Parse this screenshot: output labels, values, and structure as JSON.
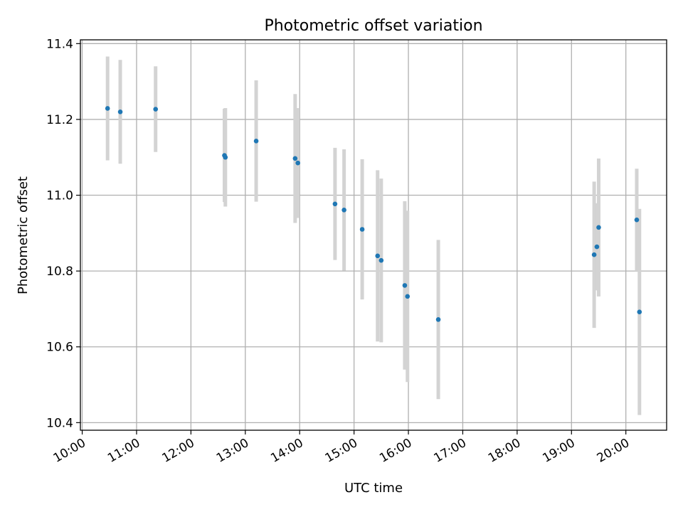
{
  "chart_data": {
    "type": "scatter",
    "title": "Photometric offset variation",
    "xlabel": "UTC time",
    "ylabel": "Photometric offset",
    "xlim": [
      "09:58",
      "20:45"
    ],
    "ylim": [
      10.38,
      11.41
    ],
    "grid": true,
    "x_ticks": [
      "10:00",
      "11:00",
      "12:00",
      "13:00",
      "14:00",
      "15:00",
      "16:00",
      "17:00",
      "18:00",
      "19:00",
      "20:00"
    ],
    "y_ticks": [
      10.4,
      10.6,
      10.8,
      11.0,
      11.2,
      11.4
    ],
    "point_color": "#1f77b4",
    "errorbar_color": "#d3d3d3",
    "series": [
      {
        "points": [
          {
            "x": "10:28",
            "y": 11.229,
            "err": 0.137
          },
          {
            "x": "10:42",
            "y": 11.22,
            "err": 0.137
          },
          {
            "x": "11:21",
            "y": 11.227,
            "err": 0.113
          },
          {
            "x": "12:37",
            "y": 11.105,
            "err": 0.123
          },
          {
            "x": "12:38",
            "y": 11.1,
            "err": 0.13
          },
          {
            "x": "13:12",
            "y": 11.143,
            "err": 0.16
          },
          {
            "x": "13:55",
            "y": 11.097,
            "err": 0.17
          },
          {
            "x": "13:58",
            "y": 11.085,
            "err": 0.145
          },
          {
            "x": "14:39",
            "y": 10.977,
            "err": 0.148
          },
          {
            "x": "14:49",
            "y": 10.961,
            "err": 0.16
          },
          {
            "x": "15:09",
            "y": 10.91,
            "err": 0.185
          },
          {
            "x": "15:26",
            "y": 10.84,
            "err": 0.226
          },
          {
            "x": "15:30",
            "y": 10.828,
            "err": 0.216
          },
          {
            "x": "15:56",
            "y": 10.762,
            "err": 0.222
          },
          {
            "x": "15:59",
            "y": 10.733,
            "err": 0.226
          },
          {
            "x": "16:33",
            "y": 10.672,
            "err": 0.21
          },
          {
            "x": "19:25",
            "y": 10.843,
            "err": 0.193
          },
          {
            "x": "19:28",
            "y": 10.864,
            "err": 0.115
          },
          {
            "x": "19:30",
            "y": 10.915,
            "err": 0.182
          },
          {
            "x": "20:12",
            "y": 10.935,
            "err": 0.135
          },
          {
            "x": "20:15",
            "y": 10.692,
            "err": 0.272
          }
        ]
      }
    ]
  }
}
